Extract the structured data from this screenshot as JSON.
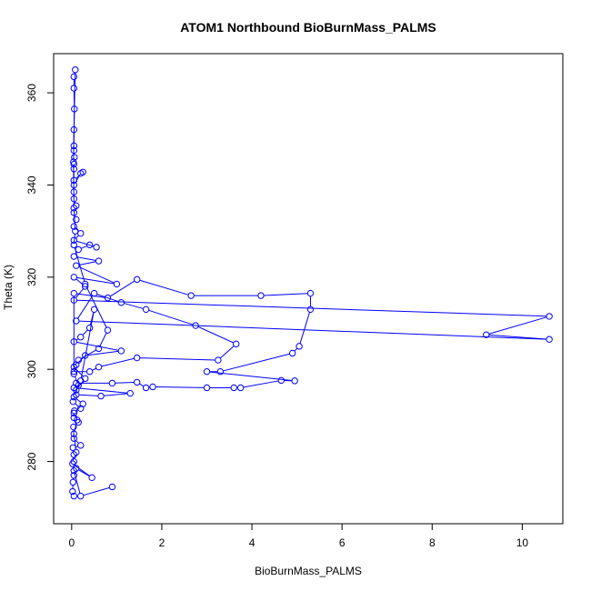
{
  "chart_data": {
    "type": "scatter",
    "title": "ATOM1 Northbound BioBurnMass_PALMS",
    "xlabel": "BioBurnMass_PALMS",
    "ylabel": "Theta (K)",
    "xlim": [
      -0.4,
      10.9
    ],
    "ylim": [
      266.5,
      368.5
    ],
    "xticks": [
      0,
      2,
      4,
      6,
      8,
      10
    ],
    "yticks": [
      280,
      300,
      320,
      340,
      360
    ],
    "grid": false,
    "legend": "none",
    "marker": "open-circle",
    "connected": true,
    "series": [
      {
        "color": "#0000ff",
        "points": [
          [
            0.05,
            272.5
          ],
          [
            0.02,
            273.5
          ],
          [
            0.03,
            275.5
          ],
          [
            0.05,
            277.0
          ],
          [
            0.1,
            278.5
          ],
          [
            0.45,
            276.5
          ],
          [
            0.02,
            279.5
          ],
          [
            0.05,
            281.5
          ],
          [
            0.03,
            283.0
          ],
          [
            0.2,
            283.5
          ],
          [
            0.05,
            285.0
          ],
          [
            0.04,
            287.5
          ],
          [
            0.15,
            288.5
          ],
          [
            0.05,
            289.5
          ],
          [
            0.06,
            291.0
          ],
          [
            0.2,
            291.5
          ],
          [
            0.03,
            293.0
          ],
          [
            0.1,
            294.5
          ],
          [
            0.65,
            294.2
          ],
          [
            1.3,
            294.8
          ],
          [
            0.05,
            296.0
          ],
          [
            0.1,
            297.0
          ],
          [
            0.9,
            297.0
          ],
          [
            1.45,
            297.2
          ],
          [
            1.65,
            296.0
          ],
          [
            1.8,
            296.2
          ],
          [
            3.0,
            296.0
          ],
          [
            3.6,
            296.0
          ],
          [
            3.75,
            296.0
          ],
          [
            4.65,
            297.6
          ],
          [
            4.95,
            297.5
          ],
          [
            3.0,
            299.5
          ],
          [
            3.3,
            299.5
          ],
          [
            4.9,
            303.5
          ],
          [
            5.05,
            305.0
          ],
          [
            5.3,
            313.0
          ],
          [
            5.3,
            316.5
          ],
          [
            4.2,
            316.0
          ],
          [
            2.65,
            316.0
          ],
          [
            1.45,
            319.5
          ],
          [
            0.8,
            315.5
          ],
          [
            0.05,
            316.5
          ],
          [
            0.05,
            299.5
          ],
          [
            0.4,
            299.5
          ],
          [
            0.6,
            300.5
          ],
          [
            1.45,
            302.5
          ],
          [
            3.25,
            302.0
          ],
          [
            3.65,
            305.5
          ],
          [
            2.75,
            309.5
          ],
          [
            1.65,
            313.0
          ],
          [
            1.1,
            314.5
          ],
          [
            0.5,
            316.5
          ],
          [
            0.1,
            310.5
          ],
          [
            10.6,
            306.5
          ],
          [
            9.2,
            307.5
          ],
          [
            10.6,
            311.5
          ],
          [
            0.05,
            315.0
          ],
          [
            0.3,
            318.0
          ],
          [
            0.05,
            320.0
          ],
          [
            1.0,
            318.5
          ],
          [
            0.1,
            322.5
          ],
          [
            0.6,
            323.5
          ],
          [
            0.05,
            324.5
          ],
          [
            0.15,
            326.0
          ],
          [
            0.4,
            327.0
          ],
          [
            0.55,
            326.5
          ],
          [
            0.05,
            328.0
          ],
          [
            0.2,
            329.5
          ],
          [
            0.05,
            331.0
          ],
          [
            0.1,
            332.5
          ],
          [
            0.05,
            334.0
          ],
          [
            0.1,
            335.5
          ],
          [
            0.05,
            337.0
          ],
          [
            0.05,
            338.5
          ],
          [
            0.05,
            340.0
          ],
          [
            0.2,
            342.5
          ],
          [
            0.25,
            342.8
          ],
          [
            0.05,
            341.0
          ],
          [
            0.05,
            343.5
          ],
          [
            0.05,
            344.5
          ],
          [
            0.06,
            346.0
          ],
          [
            0.05,
            347.5
          ],
          [
            0.05,
            348.5
          ],
          [
            0.06,
            356.5
          ],
          [
            0.05,
            361.0
          ],
          [
            0.05,
            363.5
          ],
          [
            0.08,
            365.0
          ],
          [
            0.05,
            352.0
          ],
          [
            0.04,
            345.0
          ],
          [
            0.05,
            335.0
          ],
          [
            0.08,
            330.0
          ],
          [
            0.05,
            327.0
          ],
          [
            0.3,
            318.5
          ],
          [
            0.8,
            308.5
          ],
          [
            0.6,
            304.5
          ],
          [
            0.15,
            302.0
          ],
          [
            0.05,
            300.5
          ],
          [
            0.3,
            298.0
          ],
          [
            0.1,
            295.5
          ],
          [
            0.2,
            297.5
          ],
          [
            0.5,
            313.0
          ],
          [
            0.4,
            309.0
          ],
          [
            0.2,
            307.0
          ],
          [
            0.05,
            306.0
          ],
          [
            1.1,
            304.0
          ],
          [
            0.3,
            303.0
          ],
          [
            0.1,
            301.0
          ],
          [
            0.05,
            299.0
          ],
          [
            0.15,
            296.5
          ],
          [
            0.05,
            294.0
          ],
          [
            0.25,
            292.5
          ],
          [
            0.05,
            290.5
          ],
          [
            0.12,
            289.0
          ],
          [
            0.05,
            286.0
          ],
          [
            0.1,
            282.0
          ],
          [
            0.05,
            280.0
          ],
          [
            0.05,
            278.0
          ],
          [
            0.2,
            272.5
          ],
          [
            0.9,
            274.5
          ]
        ]
      }
    ]
  }
}
